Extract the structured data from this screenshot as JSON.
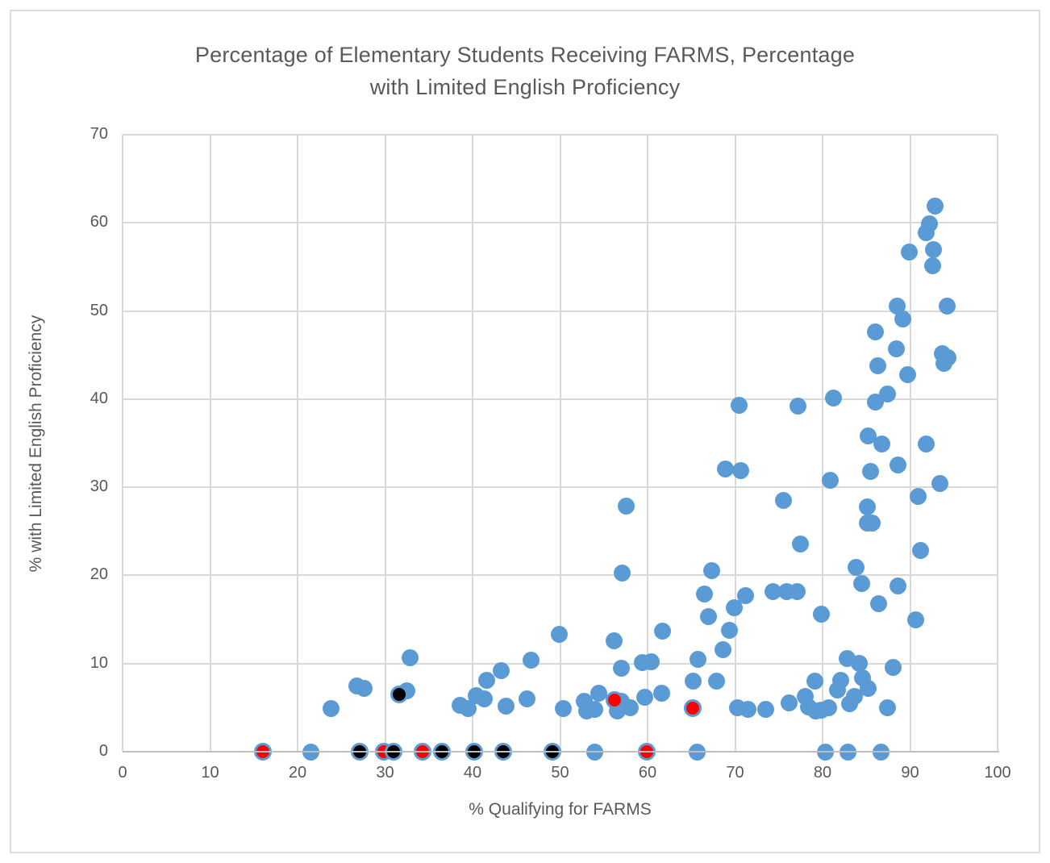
{
  "colors": {
    "accent_blue": "#5b9bd5",
    "marker_red": "#ff0000",
    "marker_black": "#000000",
    "gridline": "#d9d9d9",
    "axis_line": "#bfbfbf",
    "text": "#595959",
    "background": "#ffffff",
    "frame_border": "#dcdcdc"
  },
  "chart_data": {
    "type": "scatter",
    "title": "Percentage of Elementary Students Receiving FARMS, Percentage with Limited English Proficiency",
    "title_line1": "Percentage of Elementary Students Receiving FARMS, Percentage",
    "title_line2": "with Limited English Proficiency",
    "xlabel": "% Qualifying for FARMS",
    "ylabel": "% with Limited English Proficiency",
    "xlim": [
      0,
      100
    ],
    "ylim": [
      0,
      70
    ],
    "xticks": [
      0,
      10,
      20,
      30,
      40,
      50,
      60,
      70,
      80,
      90,
      100
    ],
    "yticks": [
      0,
      10,
      20,
      30,
      40,
      50,
      60,
      70
    ],
    "grid": true,
    "legend": "none",
    "series": [
      {
        "name": "schools-blue",
        "color": "#5b9bd5",
        "points": [
          [
            21.5,
            0
          ],
          [
            54,
            0
          ],
          [
            65.7,
            0
          ],
          [
            80.3,
            0
          ],
          [
            82.9,
            0
          ],
          [
            86.7,
            0
          ],
          [
            23.8,
            4.9
          ],
          [
            26.8,
            7.5
          ],
          [
            27.6,
            7.2
          ],
          [
            32.5,
            6.9
          ],
          [
            32.9,
            10.7
          ],
          [
            38.6,
            5.3
          ],
          [
            39.5,
            4.9
          ],
          [
            40.4,
            6.4
          ],
          [
            41.3,
            6.0
          ],
          [
            41.6,
            8.1
          ],
          [
            43.3,
            9.2
          ],
          [
            43.8,
            5.2
          ],
          [
            46.2,
            6.0
          ],
          [
            46.7,
            10.4
          ],
          [
            49.9,
            13.3
          ],
          [
            50.4,
            4.9
          ],
          [
            52.8,
            5.7
          ],
          [
            53.0,
            4.6
          ],
          [
            54.0,
            4.8
          ],
          [
            54.4,
            6.6
          ],
          [
            56.5,
            4.6
          ],
          [
            57.0,
            5.7
          ],
          [
            58.0,
            5.0
          ],
          [
            59.7,
            6.2
          ],
          [
            61.6,
            6.6
          ],
          [
            57.0,
            9.5
          ],
          [
            59.4,
            10.1
          ],
          [
            60.4,
            10.2
          ],
          [
            56.2,
            12.6
          ],
          [
            61.7,
            13.7
          ],
          [
            57.1,
            20.3
          ],
          [
            57.6,
            27.9
          ],
          [
            65.2,
            8.0
          ],
          [
            65.8,
            10.5
          ],
          [
            67.9,
            8.0
          ],
          [
            68.6,
            11.6
          ],
          [
            69.4,
            13.8
          ],
          [
            70.3,
            5.0
          ],
          [
            71.5,
            4.8
          ],
          [
            73.5,
            4.8
          ],
          [
            76.2,
            5.5
          ],
          [
            78.0,
            6.3
          ],
          [
            78.4,
            5.1
          ],
          [
            79.2,
            4.6
          ],
          [
            79.9,
            4.7
          ],
          [
            80.7,
            5.0
          ],
          [
            79.1,
            8.0
          ],
          [
            81.7,
            7.0
          ],
          [
            82.1,
            8.1
          ],
          [
            83.1,
            5.4
          ],
          [
            83.6,
            6.3
          ],
          [
            84.6,
            8.4
          ],
          [
            85.2,
            7.2
          ],
          [
            87.4,
            5.0
          ],
          [
            82.8,
            10.6
          ],
          [
            84.2,
            10.0
          ],
          [
            88.1,
            9.6
          ],
          [
            66.5,
            17.9
          ],
          [
            67.0,
            15.3
          ],
          [
            67.3,
            20.5
          ],
          [
            69.9,
            16.3
          ],
          [
            71.2,
            17.7
          ],
          [
            74.3,
            18.2
          ],
          [
            75.9,
            18.2
          ],
          [
            77.1,
            18.2
          ],
          [
            79.9,
            15.6
          ],
          [
            83.8,
            20.9
          ],
          [
            84.5,
            19.1
          ],
          [
            86.4,
            16.8
          ],
          [
            88.6,
            18.8
          ],
          [
            90.6,
            15.0
          ],
          [
            77.5,
            23.6
          ],
          [
            91.2,
            22.8
          ],
          [
            85.1,
            25.9
          ],
          [
            85.7,
            25.9
          ],
          [
            85.1,
            27.8
          ],
          [
            75.5,
            28.5
          ],
          [
            90.9,
            29.0
          ],
          [
            93.4,
            30.4
          ],
          [
            80.9,
            30.8
          ],
          [
            88.6,
            32.5
          ],
          [
            85.5,
            31.8
          ],
          [
            70.6,
            31.9
          ],
          [
            68.9,
            32.1
          ],
          [
            85.2,
            35.8
          ],
          [
            86.8,
            34.9
          ],
          [
            91.8,
            34.9
          ],
          [
            70.5,
            39.3
          ],
          [
            77.2,
            39.2
          ],
          [
            81.2,
            40.1
          ],
          [
            86.0,
            39.7
          ],
          [
            87.4,
            40.6
          ],
          [
            89.7,
            42.8
          ],
          [
            86.3,
            43.8
          ],
          [
            93.7,
            45.2
          ],
          [
            94.3,
            44.7
          ],
          [
            93.9,
            44.1
          ],
          [
            88.4,
            45.7
          ],
          [
            86.0,
            47.6
          ],
          [
            88.5,
            50.6
          ],
          [
            89.2,
            49.1
          ],
          [
            94.2,
            50.6
          ],
          [
            92.6,
            55.1
          ],
          [
            89.9,
            56.7
          ],
          [
            92.7,
            57.0
          ],
          [
            91.8,
            58.9
          ],
          [
            92.2,
            59.9
          ],
          [
            92.9,
            61.9
          ]
        ]
      },
      {
        "name": "schools-red",
        "color": "#ff0000",
        "points": [
          [
            16.0,
            0
          ],
          [
            29.9,
            0
          ],
          [
            34.3,
            0
          ],
          [
            59.9,
            0
          ],
          [
            56.2,
            5.9
          ],
          [
            65.2,
            4.9
          ]
        ]
      },
      {
        "name": "schools-black",
        "color": "#000000",
        "points": [
          [
            27.1,
            0
          ],
          [
            31.0,
            0
          ],
          [
            36.5,
            0
          ],
          [
            40.2,
            0
          ],
          [
            43.5,
            0
          ],
          [
            49.1,
            0
          ],
          [
            31.6,
            6.5
          ]
        ]
      }
    ]
  }
}
